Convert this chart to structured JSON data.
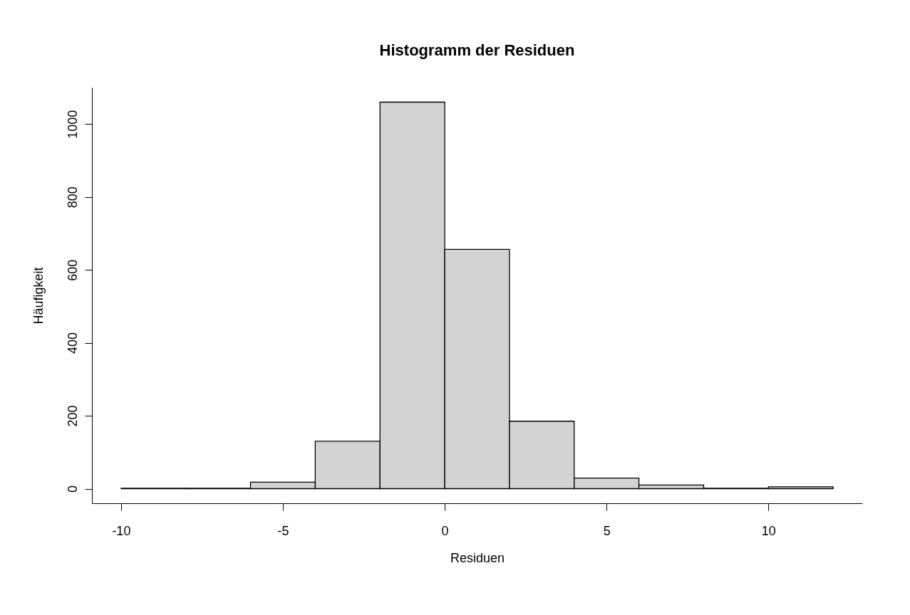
{
  "chart_data": {
    "type": "histogram",
    "title": "Histogramm der Residuen",
    "xlabel": "Residuen",
    "ylabel": "Häufigkeit",
    "bins": [
      -10,
      -8,
      -6,
      -4,
      -2,
      0,
      2,
      4,
      6,
      8,
      10,
      12
    ],
    "values": [
      1,
      1,
      18,
      130,
      1060,
      656,
      185,
      29,
      10,
      1,
      5
    ],
    "color": "#d3d3d3",
    "xlim": [
      -10.9,
      12.9
    ],
    "ylim": [
      -40,
      1100
    ],
    "xticks": [
      -10,
      -5,
      0,
      5,
      10
    ],
    "yticks": [
      0,
      200,
      400,
      600,
      800,
      1000
    ],
    "grid": false
  }
}
